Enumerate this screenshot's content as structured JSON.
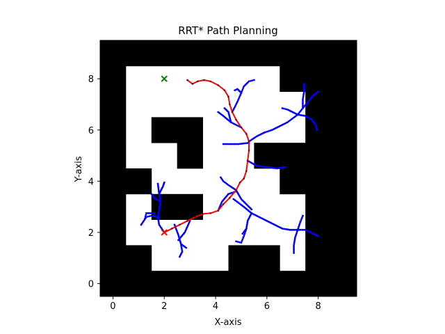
{
  "chart_data": {
    "type": "scatter",
    "title": "RRT* Path Planning",
    "xlabel": "X-axis",
    "ylabel": "Y-axis",
    "xlim": [
      -0.5,
      9.5
    ],
    "ylim": [
      -0.5,
      9.5
    ],
    "xticks": [
      0,
      2,
      4,
      6,
      8
    ],
    "yticks": [
      0,
      2,
      4,
      6,
      8
    ],
    "grid": false,
    "colors": {
      "obstacle": "#000000",
      "free": "#ffffff",
      "tree": "#0000ff",
      "path": "#ff0000",
      "goal": "#008000",
      "start": "#ff0000"
    },
    "obstacle_cells": [
      [
        0,
        0
      ],
      [
        1,
        0
      ],
      [
        2,
        0
      ],
      [
        3,
        0
      ],
      [
        4,
        0
      ],
      [
        5,
        0
      ],
      [
        6,
        0
      ],
      [
        7,
        0
      ],
      [
        8,
        0
      ],
      [
        9,
        0
      ],
      [
        0,
        1
      ],
      [
        1,
        1
      ],
      [
        5,
        1
      ],
      [
        6,
        1
      ],
      [
        8,
        1
      ],
      [
        9,
        1
      ],
      [
        0,
        2
      ],
      [
        8,
        2
      ],
      [
        9,
        2
      ],
      [
        0,
        3
      ],
      [
        2,
        3
      ],
      [
        3,
        3
      ],
      [
        8,
        3
      ],
      [
        9,
        3
      ],
      [
        0,
        4
      ],
      [
        1,
        4
      ],
      [
        7,
        4
      ],
      [
        8,
        4
      ],
      [
        9,
        4
      ],
      [
        0,
        5
      ],
      [
        3,
        5
      ],
      [
        6,
        5
      ],
      [
        7,
        5
      ],
      [
        8,
        5
      ],
      [
        9,
        5
      ],
      [
        0,
        6
      ],
      [
        2,
        6
      ],
      [
        3,
        6
      ],
      [
        8,
        6
      ],
      [
        9,
        6
      ],
      [
        0,
        7
      ],
      [
        8,
        7
      ],
      [
        9,
        7
      ],
      [
        0,
        8
      ],
      [
        7,
        8
      ],
      [
        8,
        8
      ],
      [
        9,
        8
      ],
      [
        0,
        9
      ],
      [
        1,
        9
      ],
      [
        2,
        9
      ],
      [
        3,
        9
      ],
      [
        4,
        9
      ],
      [
        5,
        9
      ],
      [
        6,
        9
      ],
      [
        7,
        9
      ],
      [
        8,
        9
      ],
      [
        9,
        9
      ]
    ],
    "start": [
      2,
      2
    ],
    "goal": [
      2,
      8
    ],
    "path": [
      [
        2.0,
        2.0
      ],
      [
        2.3,
        2.15
      ],
      [
        2.6,
        2.3
      ],
      [
        2.9,
        2.45
      ],
      [
        3.2,
        2.6
      ],
      [
        3.5,
        2.72
      ],
      [
        3.8,
        2.75
      ],
      [
        4.1,
        2.85
      ],
      [
        4.3,
        3.1
      ],
      [
        4.55,
        3.35
      ],
      [
        4.8,
        3.65
      ],
      [
        4.95,
        3.95
      ],
      [
        5.1,
        4.1
      ],
      [
        5.2,
        4.4
      ],
      [
        5.25,
        4.8
      ],
      [
        5.3,
        5.2
      ],
      [
        5.3,
        5.55
      ],
      [
        5.2,
        5.85
      ],
      [
        5.0,
        6.1
      ],
      [
        4.8,
        6.4
      ],
      [
        4.65,
        6.7
      ],
      [
        4.55,
        7.0
      ],
      [
        4.5,
        7.3
      ],
      [
        4.35,
        7.55
      ],
      [
        4.1,
        7.75
      ],
      [
        3.8,
        7.9
      ],
      [
        3.55,
        7.95
      ],
      [
        3.3,
        7.9
      ],
      [
        3.1,
        7.8
      ],
      [
        2.9,
        7.95
      ]
    ],
    "tree_branches": [
      [
        [
          2.0,
          2.0
        ],
        [
          1.8,
          2.3
        ],
        [
          1.75,
          2.6
        ],
        [
          1.8,
          2.9
        ],
        [
          1.85,
          3.2
        ],
        [
          1.8,
          3.5
        ],
        [
          1.75,
          3.9
        ]
      ],
      [
        [
          1.8,
          2.6
        ],
        [
          1.5,
          2.65
        ],
        [
          1.3,
          2.6
        ],
        [
          1.1,
          2.3
        ]
      ],
      [
        [
          1.85,
          3.2
        ],
        [
          1.6,
          3.35
        ],
        [
          1.5,
          3.5
        ]
      ],
      [
        [
          1.8,
          3.5
        ],
        [
          1.95,
          3.8
        ],
        [
          2.0,
          3.95
        ]
      ],
      [
        [
          1.6,
          2.75
        ],
        [
          1.3,
          2.75
        ],
        [
          1.25,
          2.55
        ]
      ],
      [
        [
          2.4,
          2.3
        ],
        [
          2.55,
          1.9
        ],
        [
          2.65,
          1.55
        ],
        [
          2.7,
          1.25
        ],
        [
          2.6,
          1.05
        ]
      ],
      [
        [
          2.65,
          1.55
        ],
        [
          2.85,
          1.4
        ]
      ],
      [
        [
          3.0,
          2.45
        ],
        [
          2.8,
          2.0
        ],
        [
          2.55,
          1.7
        ]
      ],
      [
        [
          4.1,
          2.85
        ],
        [
          4.25,
          3.2
        ],
        [
          4.5,
          3.5
        ],
        [
          4.8,
          3.6
        ]
      ],
      [
        [
          4.8,
          3.65
        ],
        [
          4.5,
          3.85
        ],
        [
          4.3,
          4.0
        ],
        [
          4.2,
          4.15
        ]
      ],
      [
        [
          4.8,
          3.65
        ],
        [
          5.0,
          3.3
        ],
        [
          5.2,
          3.1
        ],
        [
          5.4,
          2.9
        ]
      ],
      [
        [
          4.7,
          3.3
        ],
        [
          5.1,
          3.0
        ],
        [
          5.4,
          2.75
        ],
        [
          5.7,
          2.6
        ],
        [
          6.0,
          2.45
        ],
        [
          6.3,
          2.3
        ],
        [
          6.6,
          2.15
        ],
        [
          6.9,
          2.1
        ],
        [
          7.2,
          2.1
        ],
        [
          7.5,
          2.1
        ],
        [
          7.7,
          2.0
        ],
        [
          7.9,
          1.9
        ],
        [
          8.0,
          1.85
        ]
      ],
      [
        [
          7.2,
          2.1
        ],
        [
          7.3,
          2.4
        ],
        [
          7.4,
          2.65
        ]
      ],
      [
        [
          7.2,
          2.1
        ],
        [
          7.1,
          1.8
        ],
        [
          7.05,
          1.5
        ],
        [
          7.05,
          1.2
        ]
      ],
      [
        [
          5.4,
          2.75
        ],
        [
          5.25,
          2.45
        ],
        [
          5.2,
          2.15
        ],
        [
          5.1,
          1.85
        ],
        [
          5.0,
          1.6
        ],
        [
          4.8,
          1.65
        ]
      ],
      [
        [
          5.2,
          2.15
        ],
        [
          5.05,
          1.95
        ]
      ],
      [
        [
          5.25,
          4.8
        ],
        [
          5.6,
          4.6
        ],
        [
          6.0,
          4.55
        ],
        [
          6.4,
          4.5
        ],
        [
          6.7,
          4.55
        ]
      ],
      [
        [
          5.3,
          5.5
        ],
        [
          4.9,
          5.45
        ],
        [
          4.6,
          5.45
        ],
        [
          4.3,
          5.45
        ]
      ],
      [
        [
          5.3,
          5.55
        ],
        [
          5.6,
          5.75
        ],
        [
          5.9,
          5.9
        ]
      ],
      [
        [
          5.9,
          5.9
        ],
        [
          6.2,
          6.0
        ],
        [
          6.5,
          6.15
        ],
        [
          6.8,
          6.3
        ],
        [
          7.0,
          6.45
        ],
        [
          7.2,
          6.6
        ],
        [
          7.4,
          6.85
        ],
        [
          7.6,
          7.1
        ],
        [
          7.8,
          7.35
        ],
        [
          8.0,
          7.5
        ]
      ],
      [
        [
          7.2,
          6.6
        ],
        [
          7.0,
          6.7
        ],
        [
          6.8,
          6.8
        ],
        [
          6.6,
          6.85
        ]
      ],
      [
        [
          7.4,
          6.85
        ],
        [
          7.4,
          7.2
        ],
        [
          7.45,
          7.5
        ],
        [
          7.45,
          7.8
        ]
      ],
      [
        [
          7.2,
          6.6
        ],
        [
          7.5,
          6.55
        ],
        [
          7.75,
          6.4
        ],
        [
          7.9,
          6.2
        ],
        [
          7.95,
          6.0
        ]
      ],
      [
        [
          5.0,
          6.1
        ],
        [
          4.6,
          6.3
        ],
        [
          4.3,
          6.55
        ],
        [
          4.1,
          6.7
        ]
      ],
      [
        [
          4.6,
          6.3
        ],
        [
          4.5,
          6.7
        ],
        [
          4.35,
          6.85
        ]
      ],
      [
        [
          4.65,
          6.7
        ],
        [
          4.85,
          7.1
        ],
        [
          5.0,
          7.45
        ],
        [
          5.1,
          7.7
        ],
        [
          5.3,
          7.9
        ],
        [
          5.5,
          7.95
        ]
      ],
      [
        [
          5.0,
          7.45
        ],
        [
          4.85,
          7.6
        ],
        [
          4.75,
          7.55
        ]
      ]
    ]
  }
}
